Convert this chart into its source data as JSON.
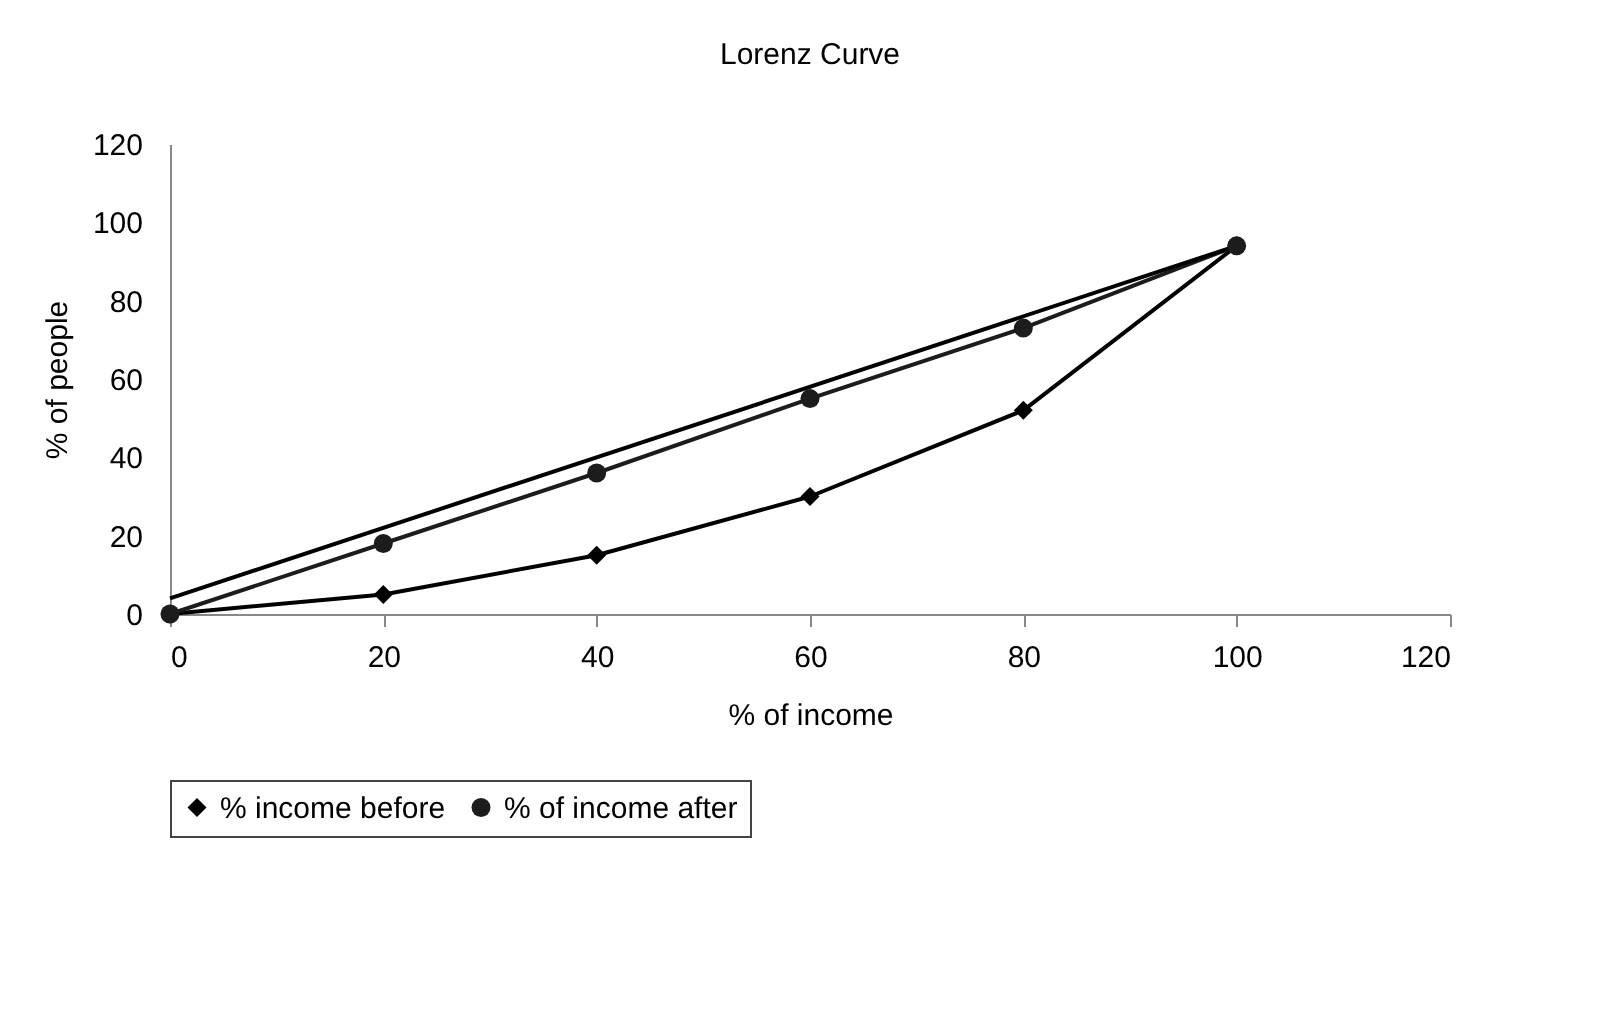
{
  "chart_data": {
    "type": "line",
    "title": "Lorenz Curve",
    "xlabel": "% of income",
    "ylabel": "% of people",
    "x": [
      0,
      20,
      40,
      60,
      80,
      100
    ],
    "series": [
      {
        "name": "% income before",
        "color": "#000000",
        "marker": "diamond",
        "values": [
          0,
          5,
          15,
          30,
          52,
          94
        ]
      },
      {
        "name": "% of income after",
        "color": "#1c1c1c",
        "marker": "circle",
        "values": [
          0,
          18,
          36,
          55,
          73,
          94
        ]
      },
      {
        "color": "#000000",
        "marker": "none",
        "x": [
          0,
          100
        ],
        "values": [
          4,
          94
        ]
      }
    ],
    "xlim": [
      0,
      120
    ],
    "xticks": [
      0,
      20,
      40,
      60,
      80,
      100,
      120
    ],
    "ylim": [
      0,
      120
    ],
    "yticks": [
      0,
      20,
      40,
      60,
      80,
      100,
      120
    ],
    "grid": false,
    "legend": "bottom"
  }
}
